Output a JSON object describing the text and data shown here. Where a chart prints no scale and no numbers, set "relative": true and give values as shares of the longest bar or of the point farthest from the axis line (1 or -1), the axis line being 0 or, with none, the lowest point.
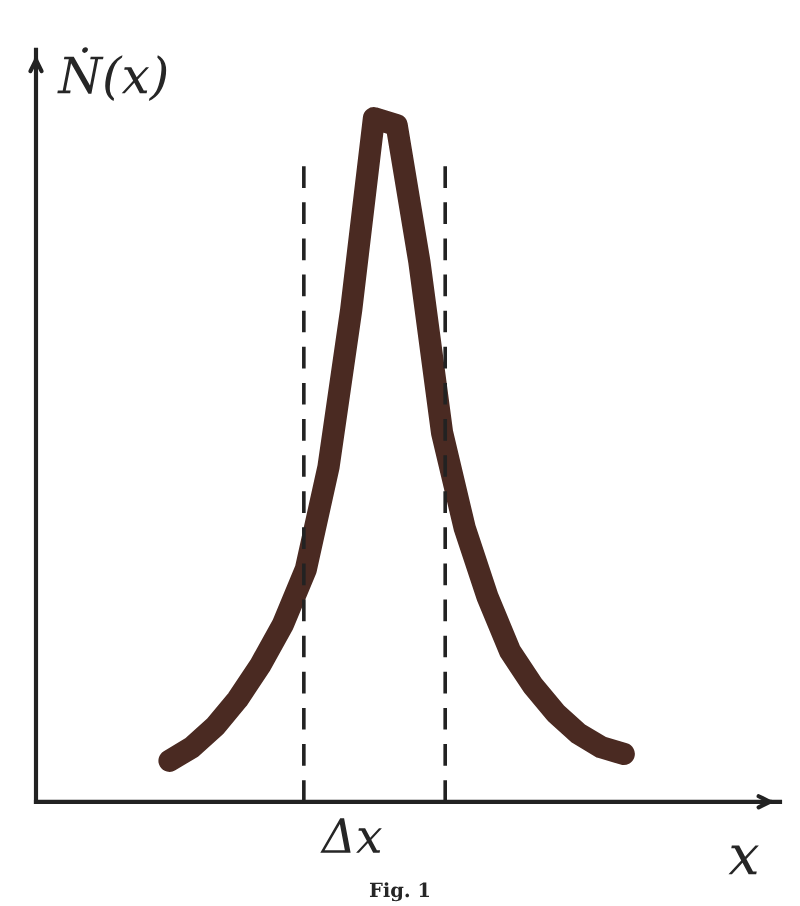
{
  "chart_data": {
    "type": "line",
    "relative": true,
    "ylabel": "Ṅ(x)",
    "xlabel": "x",
    "categories": [
      null,
      null,
      null,
      null,
      null,
      null,
      null,
      null,
      null,
      null,
      null,
      null,
      null,
      null,
      null,
      null,
      null,
      null,
      null,
      null,
      null
    ],
    "series": [
      {
        "color": "#4a2a22",
        "values": [
          0.06,
          0.08,
          0.11,
          0.15,
          0.2,
          0.26,
          0.34,
          0.49,
          0.72,
          1.0,
          0.99,
          0.79,
          0.54,
          0.4,
          0.3,
          0.22,
          0.17,
          0.13,
          0.1,
          0.08,
          0.07
        ]
      }
    ],
    "annotations": [
      "Δx",
      "Fig. 1"
    ],
    "grid": false,
    "legend": false
  }
}
